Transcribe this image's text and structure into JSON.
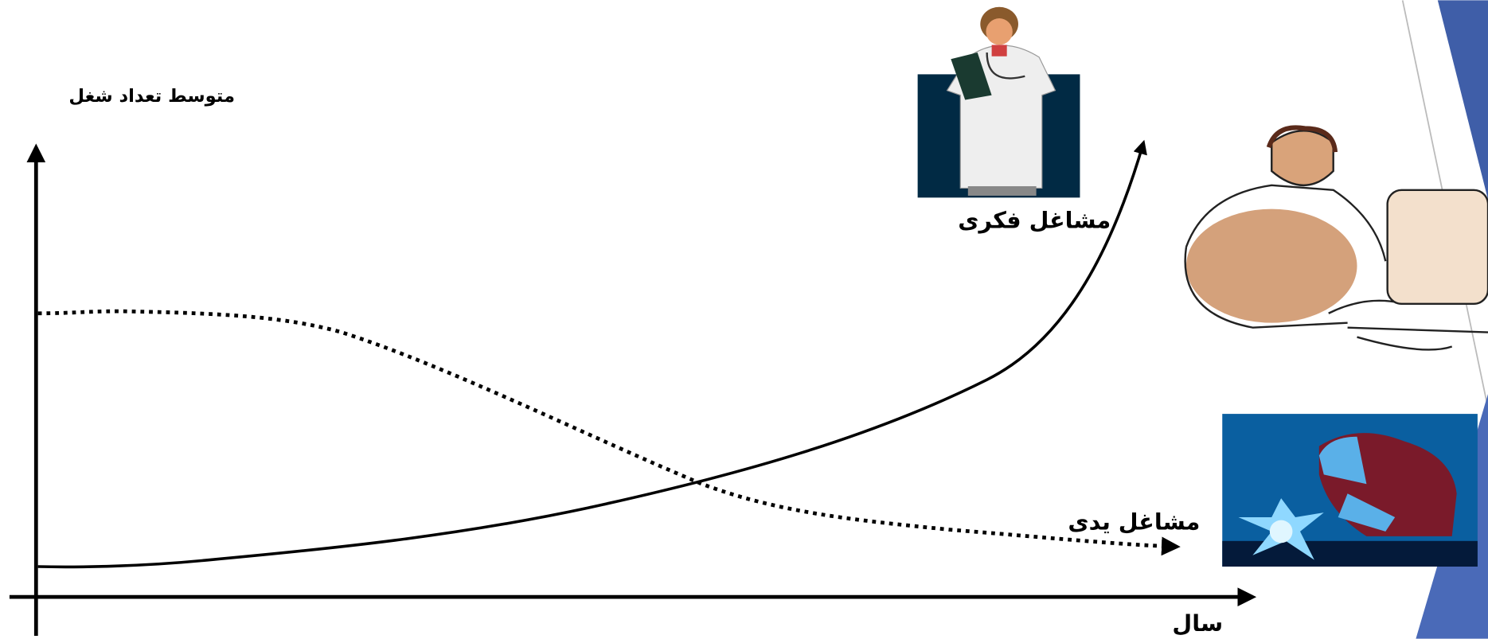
{
  "y_axis_label": "متوسط تعداد شغل",
  "x_axis_label": "سال",
  "curves": [
    {
      "label": "مشاغل فکری"
    },
    {
      "label": "مشاغل یدی"
    }
  ]
}
